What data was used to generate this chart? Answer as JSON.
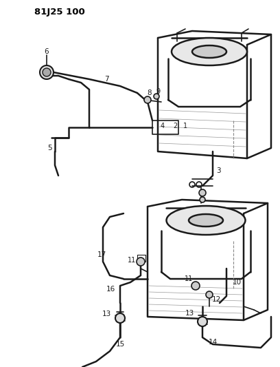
{
  "title": "81J25 100",
  "bg_color": "#ffffff",
  "line_color": "#1a1a1a",
  "fig_width": 4.08,
  "fig_height": 5.33,
  "dpi": 100
}
